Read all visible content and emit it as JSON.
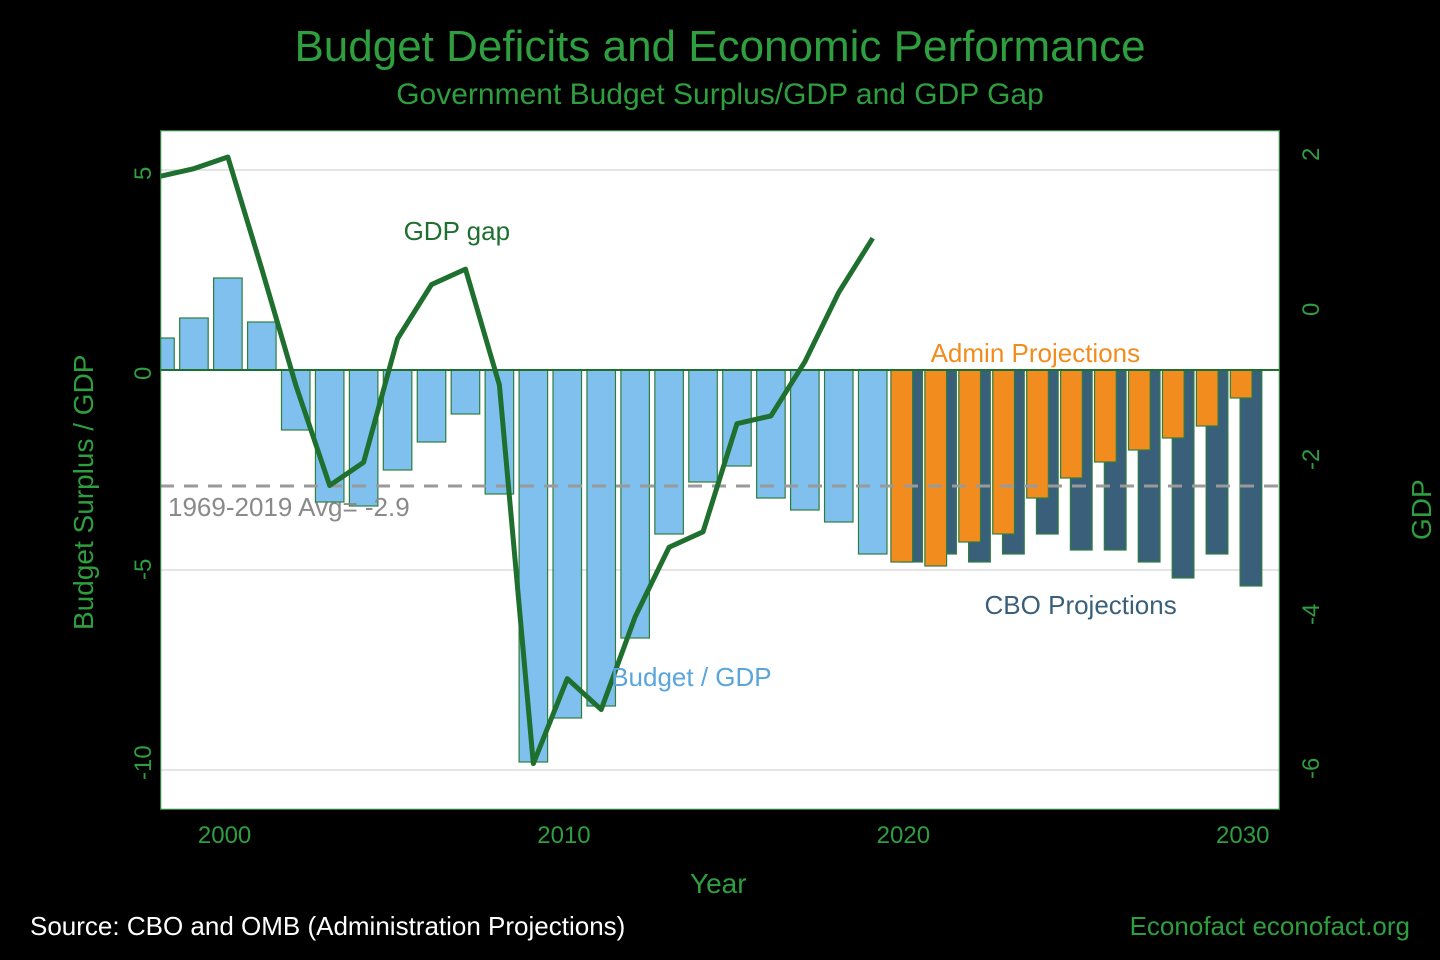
{
  "title": "Budget Deficits and Economic Performance",
  "subtitle": "Government Budget Surplus/GDP and GDP Gap",
  "x_axis_label": "Year",
  "y_left_label": "Budget Surplus / GDP",
  "y_right_label": "GDP Gap",
  "source_text": "Source: CBO and OMB (Administration Projections)",
  "brand_text": "Econofact  econofact.org",
  "colors": {
    "background": "#000000",
    "plot_bg": "#ffffff",
    "title": "#2e9e3f",
    "grid": "#c8c8c8",
    "hist_bar_fill": "#7fc0ee",
    "hist_bar_stroke": "#2e7e3e",
    "admin_fill": "#f28c1e",
    "admin_stroke": "#2e7e3e",
    "cbo_fill": "#3a5f7a",
    "cbo_stroke": "#2e7e3e",
    "gdp_line": "#1f6f2f",
    "avg_line": "#9a9a9a",
    "axis_text": "#2e9e3f",
    "avg_text": "#8a8a8a",
    "budget_label": "#5aa5dc",
    "admin_label": "#f28c1e",
    "cbo_label": "#3a5f7a"
  },
  "chart": {
    "x_range": [
      1998,
      2031
    ],
    "y_left_range": [
      -11,
      6
    ],
    "y_right_range": [
      -6.5,
      2.3
    ],
    "y_left_ticks": [
      -10,
      -5,
      0,
      5
    ],
    "y_right_ticks": [
      -6,
      -4,
      -2,
      0,
      2
    ],
    "x_ticks": [
      2000,
      2010,
      2020,
      2030
    ],
    "avg_line_value": -2.9,
    "avg_line_label": "1969-2019 Avg= -2.9",
    "bars_historical": [
      {
        "year": 1998,
        "v": 0.8
      },
      {
        "year": 1999,
        "v": 1.3
      },
      {
        "year": 2000,
        "v": 2.3
      },
      {
        "year": 2001,
        "v": 1.2
      },
      {
        "year": 2002,
        "v": -1.5
      },
      {
        "year": 2003,
        "v": -3.3
      },
      {
        "year": 2004,
        "v": -3.4
      },
      {
        "year": 2005,
        "v": -2.5
      },
      {
        "year": 2006,
        "v": -1.8
      },
      {
        "year": 2007,
        "v": -1.1
      },
      {
        "year": 2008,
        "v": -3.1
      },
      {
        "year": 2009,
        "v": -9.8
      },
      {
        "year": 2010,
        "v": -8.7
      },
      {
        "year": 2011,
        "v": -8.4
      },
      {
        "year": 2012,
        "v": -6.7
      },
      {
        "year": 2013,
        "v": -4.1
      },
      {
        "year": 2014,
        "v": -2.8
      },
      {
        "year": 2015,
        "v": -2.4
      },
      {
        "year": 2016,
        "v": -3.2
      },
      {
        "year": 2017,
        "v": -3.5
      },
      {
        "year": 2018,
        "v": -3.8
      },
      {
        "year": 2019,
        "v": -4.6
      }
    ],
    "bars_cbo": [
      {
        "year": 2020,
        "v": -4.8
      },
      {
        "year": 2021,
        "v": -4.6
      },
      {
        "year": 2022,
        "v": -4.8
      },
      {
        "year": 2023,
        "v": -4.6
      },
      {
        "year": 2024,
        "v": -4.1
      },
      {
        "year": 2025,
        "v": -4.5
      },
      {
        "year": 2026,
        "v": -4.5
      },
      {
        "year": 2027,
        "v": -4.8
      },
      {
        "year": 2028,
        "v": -5.2
      },
      {
        "year": 2029,
        "v": -4.6
      },
      {
        "year": 2030,
        "v": -5.4
      }
    ],
    "bars_admin": [
      {
        "year": 2020,
        "v": -4.8
      },
      {
        "year": 2021,
        "v": -4.9
      },
      {
        "year": 2022,
        "v": -4.3
      },
      {
        "year": 2023,
        "v": -4.1
      },
      {
        "year": 2024,
        "v": -3.2
      },
      {
        "year": 2025,
        "v": -2.7
      },
      {
        "year": 2026,
        "v": -2.3
      },
      {
        "year": 2027,
        "v": -2.0
      },
      {
        "year": 2028,
        "v": -1.7
      },
      {
        "year": 2029,
        "v": -1.4
      },
      {
        "year": 2030,
        "v": -0.7
      }
    ],
    "gdp_gap_line": [
      {
        "year": 1998,
        "v": 1.7
      },
      {
        "year": 1999,
        "v": 1.8
      },
      {
        "year": 2000,
        "v": 1.95
      },
      {
        "year": 2001,
        "v": 0.5
      },
      {
        "year": 2002,
        "v": -1.0
      },
      {
        "year": 2003,
        "v": -2.3
      },
      {
        "year": 2004,
        "v": -2.0
      },
      {
        "year": 2005,
        "v": -0.4
      },
      {
        "year": 2006,
        "v": 0.3
      },
      {
        "year": 2007,
        "v": 0.5
      },
      {
        "year": 2008,
        "v": -1.0
      },
      {
        "year": 2009,
        "v": -5.9
      },
      {
        "year": 2010,
        "v": -4.8
      },
      {
        "year": 2011,
        "v": -5.2
      },
      {
        "year": 2012,
        "v": -4.0
      },
      {
        "year": 2013,
        "v": -3.1
      },
      {
        "year": 2014,
        "v": -2.9
      },
      {
        "year": 2015,
        "v": -1.5
      },
      {
        "year": 2016,
        "v": -1.4
      },
      {
        "year": 2017,
        "v": -0.7
      },
      {
        "year": 2018,
        "v": 0.2
      },
      {
        "year": 2019,
        "v": 0.9
      }
    ],
    "annotations": {
      "gdp_gap": "GDP gap",
      "budget_gdp": "Budget / GDP",
      "admin_proj": "Admin Projections",
      "cbo_proj": "CBO Projections"
    }
  }
}
